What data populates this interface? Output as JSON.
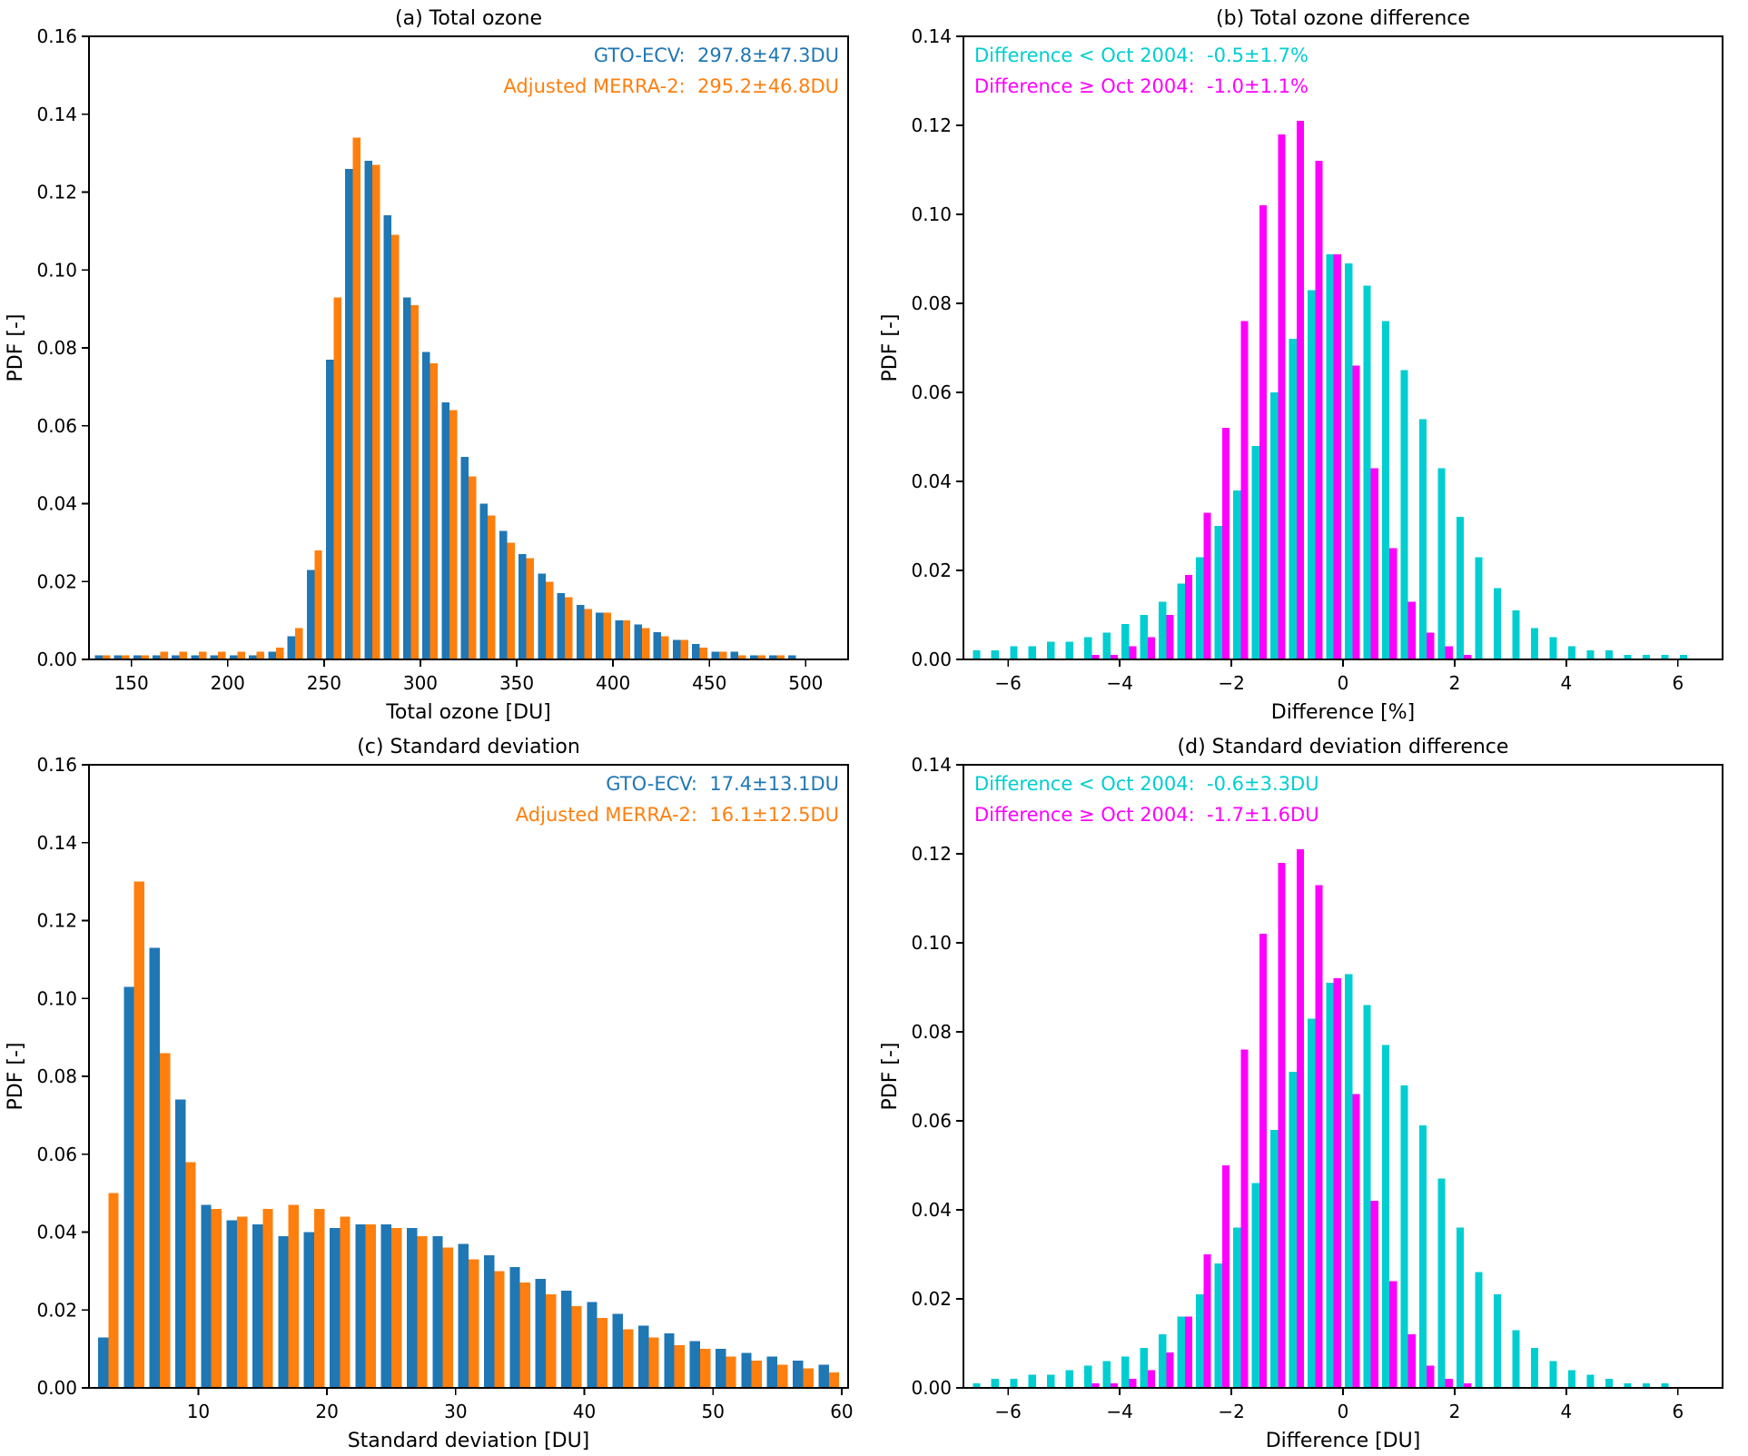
{
  "page": {
    "background": "#ffffff"
  },
  "colors": {
    "gto_ecv_blue": "#1f77b4",
    "merra2_orange": "#ff7f0e",
    "diff_before_cyan": "#00CED1",
    "diff_after_magenta": "#FF00FF",
    "axis_black": "#000000"
  },
  "chart_data": [
    {
      "id": "a",
      "type": "bar",
      "title": "(a) Total ozone",
      "xlabel": "Total ozone [DU]",
      "ylabel": "PDF [-]",
      "xlim": [
        128,
        522
      ],
      "ylim": [
        0,
        0.16
      ],
      "xtick_values": [
        150,
        200,
        250,
        300,
        350,
        400,
        450,
        500
      ],
      "xtick_labels": [
        "150",
        "200",
        "250",
        "300",
        "350",
        "400",
        "450",
        "500"
      ],
      "ytick_values": [
        0,
        0.02,
        0.04,
        0.06,
        0.08,
        0.1,
        0.12,
        0.14,
        0.16
      ],
      "grid": false,
      "legend_align": "right",
      "legend": [
        {
          "text": "GTO-ECV:  297.8±47.3DU",
          "color": "#1f77b4"
        },
        {
          "text": "Adjusted MERRA-2:  295.2±46.8DU",
          "color": "#ff7f0e"
        }
      ],
      "bin_centers": [
        135,
        145,
        155,
        165,
        175,
        185,
        195,
        205,
        215,
        225,
        235,
        245,
        255,
        265,
        275,
        285,
        295,
        305,
        315,
        325,
        335,
        345,
        355,
        365,
        375,
        385,
        395,
        405,
        415,
        425,
        435,
        445,
        455,
        465,
        475,
        485,
        495,
        505
      ],
      "series": [
        {
          "name": "GTO-ECV",
          "color": "#1f77b4",
          "values": [
            0.001,
            0.001,
            0.001,
            0.001,
            0.001,
            0.001,
            0.001,
            0.001,
            0.001,
            0.002,
            0.006,
            0.023,
            0.077,
            0.126,
            0.128,
            0.114,
            0.093,
            0.079,
            0.066,
            0.052,
            0.04,
            0.033,
            0.027,
            0.022,
            0.017,
            0.014,
            0.012,
            0.01,
            0.009,
            0.007,
            0.005,
            0.004,
            0.002,
            0.002,
            0.001,
            0.001,
            0.001,
            0.0
          ]
        },
        {
          "name": "Adjusted MERRA-2",
          "color": "#ff7f0e",
          "values": [
            0.001,
            0.001,
            0.001,
            0.002,
            0.002,
            0.002,
            0.002,
            0.002,
            0.002,
            0.003,
            0.008,
            0.028,
            0.093,
            0.134,
            0.127,
            0.109,
            0.091,
            0.076,
            0.064,
            0.047,
            0.037,
            0.03,
            0.026,
            0.02,
            0.016,
            0.013,
            0.012,
            0.01,
            0.008,
            0.006,
            0.005,
            0.003,
            0.002,
            0.001,
            0.001,
            0.001,
            0.0,
            0.0
          ]
        }
      ]
    },
    {
      "id": "b",
      "type": "bar",
      "title": "(b) Total ozone difference",
      "xlabel": "Difference [%]",
      "ylabel": "PDF [-]",
      "xlim": [
        -6.8,
        6.8
      ],
      "ylim": [
        0,
        0.14
      ],
      "xtick_values": [
        -6,
        -4,
        -2,
        0,
        2,
        4,
        6
      ],
      "xtick_labels": [
        "−6",
        "−4",
        "−2",
        "0",
        "2",
        "4",
        "6"
      ],
      "ytick_values": [
        0,
        0.02,
        0.04,
        0.06,
        0.08,
        0.1,
        0.12,
        0.14
      ],
      "grid": false,
      "legend_align": "left",
      "legend": [
        {
          "text": "Difference < Oct 2004:  -0.5±1.7%",
          "color": "#00CED1"
        },
        {
          "text": "Difference ≥ Oct 2004:  -1.0±1.1%",
          "color": "#FF00FF"
        }
      ],
      "bin_centers": [
        -6.5,
        -6.167,
        -5.833,
        -5.5,
        -5.167,
        -4.833,
        -4.5,
        -4.167,
        -3.833,
        -3.5,
        -3.167,
        -2.833,
        -2.5,
        -2.167,
        -1.833,
        -1.5,
        -1.167,
        -0.833,
        -0.5,
        -0.167,
        0.167,
        0.5,
        0.833,
        1.167,
        1.5,
        1.833,
        2.167,
        2.5,
        2.833,
        3.167,
        3.5,
        3.833,
        4.167,
        4.5,
        4.833,
        5.167,
        5.5,
        5.833,
        6.167,
        6.5
      ],
      "series": [
        {
          "name": "Difference < Oct 2004",
          "color": "#00CED1",
          "values": [
            0.002,
            0.002,
            0.003,
            0.003,
            0.004,
            0.004,
            0.005,
            0.006,
            0.008,
            0.01,
            0.013,
            0.017,
            0.023,
            0.03,
            0.038,
            0.048,
            0.06,
            0.072,
            0.083,
            0.091,
            0.089,
            0.084,
            0.076,
            0.065,
            0.054,
            0.043,
            0.032,
            0.023,
            0.016,
            0.011,
            0.007,
            0.005,
            0.003,
            0.002,
            0.002,
            0.001,
            0.001,
            0.001,
            0.001,
            0.0
          ]
        },
        {
          "name": "Difference ≥ Oct 2004",
          "color": "#FF00FF",
          "values": [
            0.0,
            0.0,
            0.0,
            0.0,
            0.0,
            0.0,
            0.001,
            0.001,
            0.003,
            0.005,
            0.01,
            0.019,
            0.033,
            0.052,
            0.076,
            0.102,
            0.118,
            0.121,
            0.112,
            0.091,
            0.066,
            0.043,
            0.025,
            0.013,
            0.006,
            0.003,
            0.001,
            0.0,
            0.0,
            0.0,
            0.0,
            0.0,
            0.0,
            0.0,
            0.0,
            0.0,
            0.0,
            0.0,
            0.0,
            0.0
          ]
        }
      ]
    },
    {
      "id": "c",
      "type": "bar",
      "title": "(c) Standard deviation",
      "xlabel": "Standard deviation [DU]",
      "ylabel": "PDF [-]",
      "xlim": [
        1.5,
        60.5
      ],
      "ylim": [
        0,
        0.16
      ],
      "xtick_values": [
        10,
        20,
        30,
        40,
        50,
        60
      ],
      "xtick_labels": [
        "10",
        "20",
        "30",
        "40",
        "50",
        "60"
      ],
      "ytick_values": [
        0,
        0.02,
        0.04,
        0.06,
        0.08,
        0.1,
        0.12,
        0.14,
        0.16
      ],
      "grid": false,
      "legend_align": "right",
      "legend": [
        {
          "text": "GTO-ECV:  17.4±13.1DU",
          "color": "#1f77b4"
        },
        {
          "text": "Adjusted MERRA-2:  16.1±12.5DU",
          "color": "#ff7f0e"
        }
      ],
      "bin_centers": [
        3,
        5,
        7,
        9,
        11,
        13,
        15,
        17,
        19,
        21,
        23,
        25,
        27,
        29,
        31,
        33,
        35,
        37,
        39,
        41,
        43,
        45,
        47,
        49,
        51,
        53,
        55,
        57,
        59
      ],
      "series": [
        {
          "name": "GTO-ECV",
          "color": "#1f77b4",
          "values": [
            0.013,
            0.103,
            0.113,
            0.074,
            0.047,
            0.043,
            0.042,
            0.039,
            0.04,
            0.041,
            0.042,
            0.042,
            0.041,
            0.039,
            0.037,
            0.034,
            0.031,
            0.028,
            0.025,
            0.022,
            0.019,
            0.016,
            0.014,
            0.012,
            0.01,
            0.009,
            0.008,
            0.007,
            0.006
          ]
        },
        {
          "name": "Adjusted MERRA-2",
          "color": "#ff7f0e",
          "values": [
            0.05,
            0.13,
            0.086,
            0.058,
            0.046,
            0.044,
            0.046,
            0.047,
            0.046,
            0.044,
            0.042,
            0.041,
            0.039,
            0.036,
            0.033,
            0.03,
            0.027,
            0.024,
            0.021,
            0.018,
            0.015,
            0.013,
            0.011,
            0.01,
            0.008,
            0.007,
            0.006,
            0.005,
            0.004
          ]
        }
      ]
    },
    {
      "id": "d",
      "type": "bar",
      "title": "(d) Standard deviation difference",
      "xlabel": "Difference [DU]",
      "ylabel": "PDF [-]",
      "xlim": [
        -6.8,
        6.8
      ],
      "ylim": [
        0,
        0.14
      ],
      "xtick_values": [
        -6,
        -4,
        -2,
        0,
        2,
        4,
        6
      ],
      "xtick_labels": [
        "−6",
        "−4",
        "−2",
        "0",
        "2",
        "4",
        "6"
      ],
      "ytick_values": [
        0,
        0.02,
        0.04,
        0.06,
        0.08,
        0.1,
        0.12,
        0.14
      ],
      "grid": false,
      "legend_align": "left",
      "legend": [
        {
          "text": "Difference < Oct 2004:  -0.6±3.3DU",
          "color": "#00CED1"
        },
        {
          "text": "Difference ≥ Oct 2004:  -1.7±1.6DU",
          "color": "#FF00FF"
        }
      ],
      "bin_centers": [
        -6.5,
        -6.167,
        -5.833,
        -5.5,
        -5.167,
        -4.833,
        -4.5,
        -4.167,
        -3.833,
        -3.5,
        -3.167,
        -2.833,
        -2.5,
        -2.167,
        -1.833,
        -1.5,
        -1.167,
        -0.833,
        -0.5,
        -0.167,
        0.167,
        0.5,
        0.833,
        1.167,
        1.5,
        1.833,
        2.167,
        2.5,
        2.833,
        3.167,
        3.5,
        3.833,
        4.167,
        4.5,
        4.833,
        5.167,
        5.5,
        5.833,
        6.167,
        6.5
      ],
      "series": [
        {
          "name": "Difference < Oct 2004",
          "color": "#00CED1",
          "values": [
            0.001,
            0.002,
            0.002,
            0.003,
            0.003,
            0.004,
            0.005,
            0.006,
            0.007,
            0.009,
            0.012,
            0.016,
            0.021,
            0.028,
            0.036,
            0.046,
            0.058,
            0.071,
            0.083,
            0.091,
            0.093,
            0.086,
            0.077,
            0.068,
            0.059,
            0.047,
            0.036,
            0.026,
            0.021,
            0.013,
            0.009,
            0.006,
            0.004,
            0.003,
            0.002,
            0.001,
            0.001,
            0.001,
            0.0,
            0.0
          ]
        },
        {
          "name": "Difference ≥ Oct 2004",
          "color": "#FF00FF",
          "values": [
            0.0,
            0.0,
            0.0,
            0.0,
            0.0,
            0.0,
            0.001,
            0.001,
            0.002,
            0.004,
            0.008,
            0.016,
            0.03,
            0.05,
            0.076,
            0.102,
            0.118,
            0.121,
            0.113,
            0.092,
            0.066,
            0.042,
            0.024,
            0.012,
            0.005,
            0.002,
            0.001,
            0.0,
            0.0,
            0.0,
            0.0,
            0.0,
            0.0,
            0.0,
            0.0,
            0.0,
            0.0,
            0.0,
            0.0,
            0.0
          ]
        }
      ]
    }
  ]
}
